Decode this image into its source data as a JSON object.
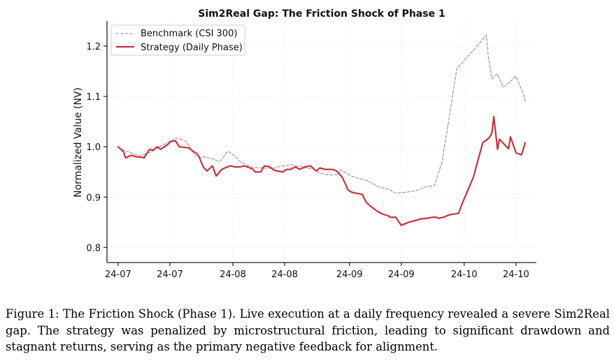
{
  "chart_data": {
    "type": "line",
    "title": "Sim2Real Gap: The Friction Shock of Phase 1",
    "xlabel": "",
    "ylabel": "Normalized Value (NV)",
    "ylim": [
      0.77,
      1.25
    ],
    "y_ticks": [
      0.8,
      0.9,
      1.0,
      1.1,
      1.2
    ],
    "y_tick_labels": [
      "0.8",
      "0.9",
      "1.0",
      "1.1",
      "1.2"
    ],
    "x_range": [
      -6,
      226
    ],
    "x_ticks": [
      {
        "x": 0,
        "label": "24-07"
      },
      {
        "x": 28,
        "label": "24-07"
      },
      {
        "x": 62,
        "label": "24-08"
      },
      {
        "x": 90,
        "label": "24-08"
      },
      {
        "x": 125,
        "label": "24-09"
      },
      {
        "x": 153,
        "label": "24-09"
      },
      {
        "x": 187,
        "label": "24-10"
      },
      {
        "x": 215,
        "label": "24-10"
      }
    ],
    "grid": true,
    "legend_position": "top-left",
    "series": [
      {
        "name": "Benchmark (CSI 300)",
        "color": "#999999",
        "style": "dashed",
        "x": [
          0,
          3,
          6,
          9,
          13,
          15,
          18,
          21,
          25,
          28,
          31,
          34,
          37,
          41,
          44,
          46,
          49,
          52,
          55,
          59,
          60,
          63,
          66,
          69,
          72,
          75,
          78,
          81,
          85,
          88,
          91,
          93,
          96,
          99,
          102,
          106,
          109,
          112,
          115,
          119,
          120,
          123,
          126,
          129,
          133,
          136,
          141,
          146,
          150,
          154,
          158,
          161,
          166,
          171,
          175,
          179,
          183,
          189,
          194,
          199,
          200,
          202,
          205,
          208,
          212,
          215,
          219,
          220
        ],
        "values": [
          1.0,
          0.993,
          0.99,
          0.985,
          0.982,
          0.987,
          0.99,
          0.998,
          1.005,
          1.01,
          1.017,
          1.015,
          1.01,
          0.985,
          0.978,
          0.98,
          0.978,
          0.975,
          0.97,
          0.99,
          0.99,
          0.982,
          0.97,
          0.965,
          0.96,
          0.958,
          0.958,
          0.957,
          0.958,
          0.962,
          0.962,
          0.965,
          0.962,
          0.961,
          0.958,
          0.955,
          0.948,
          0.945,
          0.944,
          0.945,
          0.955,
          0.948,
          0.942,
          0.938,
          0.935,
          0.93,
          0.92,
          0.916,
          0.908,
          0.909,
          0.911,
          0.913,
          0.92,
          0.923,
          0.97,
          1.06,
          1.155,
          1.18,
          1.2,
          1.222,
          1.18,
          1.135,
          1.145,
          1.118,
          1.13,
          1.14,
          1.105,
          1.09
        ]
      },
      {
        "name": "Strategy (Daily Phase)",
        "color": "#c8323c",
        "style": "solid",
        "x": [
          0,
          3,
          4,
          7,
          10,
          13,
          14,
          17,
          19,
          21,
          23,
          25,
          27,
          28,
          31,
          33,
          38,
          41,
          43,
          44,
          46,
          48,
          51,
          53,
          56,
          59,
          61,
          63,
          66,
          68,
          70,
          73,
          74,
          77,
          79,
          82,
          84,
          86,
          89,
          91,
          93,
          96,
          98,
          101,
          104,
          107,
          109,
          112,
          116,
          118,
          121,
          123,
          124,
          126,
          128,
          130,
          132,
          134,
          136,
          140,
          142,
          144,
          146,
          147,
          150,
          153,
          157,
          161,
          164,
          167,
          170,
          172,
          173,
          176,
          179,
          181,
          184,
          186,
          188,
          192,
          197,
          199,
          201,
          202,
          203,
          205,
          206,
          211,
          212,
          215,
          218,
          220
        ],
        "values": [
          1.0,
          0.99,
          0.978,
          0.983,
          0.98,
          0.979,
          0.978,
          0.995,
          0.993,
          1.0,
          0.995,
          1.0,
          1.005,
          1.01,
          1.012,
          1.0,
          0.998,
          0.99,
          0.985,
          0.978,
          0.96,
          0.952,
          0.962,
          0.942,
          0.955,
          0.96,
          0.962,
          0.96,
          0.96,
          0.962,
          0.96,
          0.955,
          0.95,
          0.95,
          0.962,
          0.96,
          0.954,
          0.952,
          0.95,
          0.955,
          0.955,
          0.96,
          0.955,
          0.96,
          0.962,
          0.952,
          0.958,
          0.955,
          0.955,
          0.952,
          0.94,
          0.925,
          0.915,
          0.91,
          0.908,
          0.907,
          0.905,
          0.89,
          0.883,
          0.872,
          0.868,
          0.865,
          0.863,
          0.86,
          0.86,
          0.844,
          0.85,
          0.854,
          0.857,
          0.858,
          0.86,
          0.86,
          0.858,
          0.86,
          0.865,
          0.866,
          0.868,
          0.888,
          0.905,
          0.94,
          1.008,
          1.013,
          1.02,
          1.028,
          1.06,
          0.995,
          1.015,
          0.996,
          1.02,
          0.988,
          0.984,
          1.008
        ]
      }
    ]
  },
  "caption": {
    "text": "Figure 1: The Friction Shock (Phase 1). Live execution at a daily frequency revealed a severe Sim2Real gap. The strategy was penalized by microstructural friction, leading to significant drawdown and stagnant returns, serving as the primary negative feedback for alignment."
  }
}
